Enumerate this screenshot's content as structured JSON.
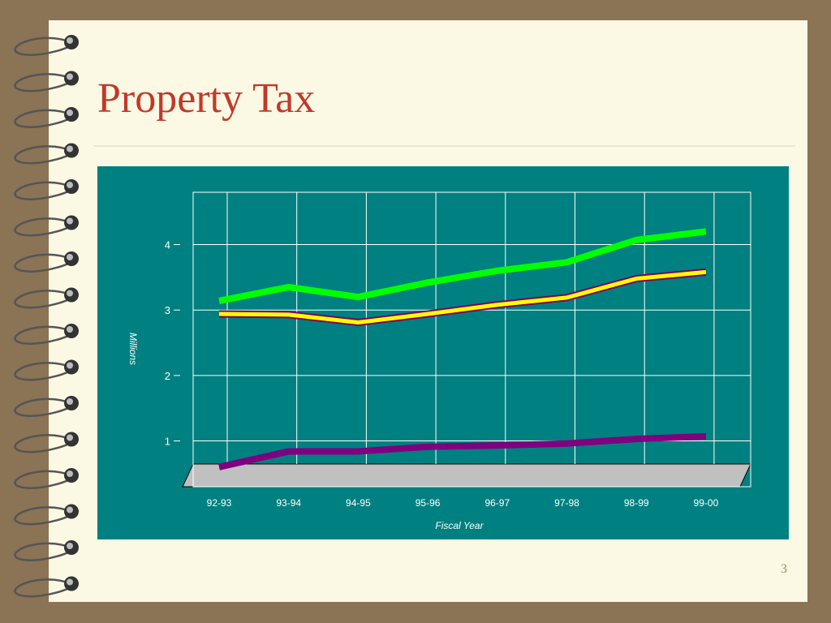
{
  "chart_data": {
    "type": "line",
    "title": "Property Tax",
    "x_label": "Fiscal Year",
    "y_label": "Millions",
    "categories": [
      "92-93",
      "93-94",
      "94-95",
      "95-96",
      "96-97",
      "97-98",
      "98-99",
      "99-00"
    ],
    "series": [
      {
        "color": "#00ff00",
        "values": [
          3.14,
          3.35,
          3.2,
          3.42,
          3.6,
          3.73,
          4.07,
          4.2
        ]
      },
      {
        "color": "#ffff00",
        "values": [
          2.94,
          2.93,
          2.81,
          2.94,
          3.08,
          3.19,
          3.48,
          3.58
        ]
      },
      {
        "color": "#800080",
        "values": [
          0.6,
          0.84,
          0.84,
          0.91,
          0.93,
          0.96,
          1.03,
          1.07
        ]
      }
    ],
    "ylim": [
      0.3,
      4.8
    ],
    "yticks": [
      1,
      2,
      3,
      4
    ],
    "grid": true
  },
  "page_number": 3
}
